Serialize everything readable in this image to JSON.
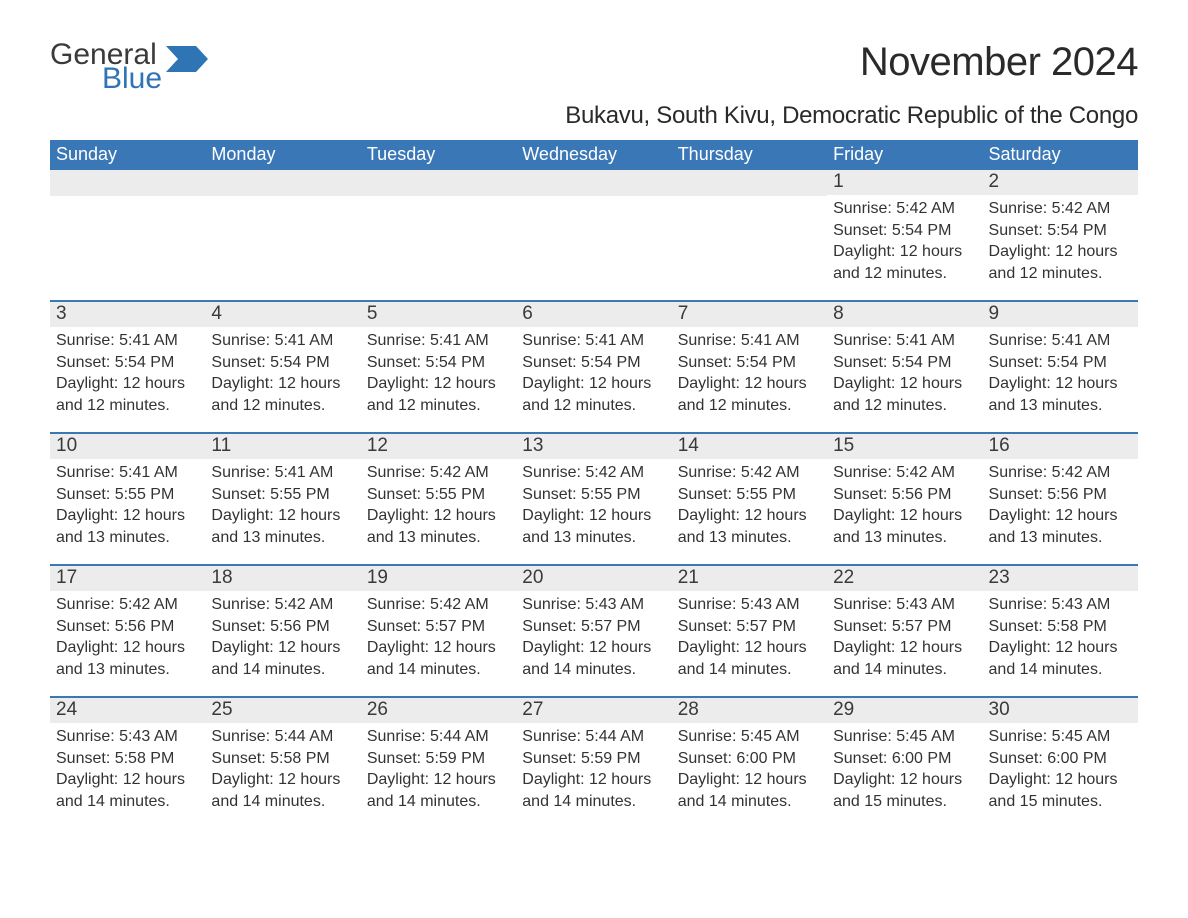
{
  "logo": {
    "word1": "General",
    "word2": "Blue"
  },
  "colors": {
    "header_bg": "#3a77b7",
    "header_text": "#ffffff",
    "day_num_bg": "#ececec",
    "rule": "#3a77b7",
    "logo_gray": "#3a3a3a",
    "logo_blue": "#2f74b5",
    "body_text": "#333333",
    "page_bg": "#ffffff"
  },
  "typography": {
    "title_fontsize": 40,
    "location_fontsize": 24,
    "dayheader_fontsize": 18,
    "daynum_fontsize": 19,
    "body_fontsize": 16
  },
  "title": "November 2024",
  "location": "Bukavu, South Kivu, Democratic Republic of the Congo",
  "day_names": [
    "Sunday",
    "Monday",
    "Tuesday",
    "Wednesday",
    "Thursday",
    "Friday",
    "Saturday"
  ],
  "weeks": [
    [
      null,
      null,
      null,
      null,
      null,
      {
        "n": "1",
        "sr": "5:42 AM",
        "ss": "5:54 PM",
        "dl": "12 hours and 12 minutes."
      },
      {
        "n": "2",
        "sr": "5:42 AM",
        "ss": "5:54 PM",
        "dl": "12 hours and 12 minutes."
      }
    ],
    [
      {
        "n": "3",
        "sr": "5:41 AM",
        "ss": "5:54 PM",
        "dl": "12 hours and 12 minutes."
      },
      {
        "n": "4",
        "sr": "5:41 AM",
        "ss": "5:54 PM",
        "dl": "12 hours and 12 minutes."
      },
      {
        "n": "5",
        "sr": "5:41 AM",
        "ss": "5:54 PM",
        "dl": "12 hours and 12 minutes."
      },
      {
        "n": "6",
        "sr": "5:41 AM",
        "ss": "5:54 PM",
        "dl": "12 hours and 12 minutes."
      },
      {
        "n": "7",
        "sr": "5:41 AM",
        "ss": "5:54 PM",
        "dl": "12 hours and 12 minutes."
      },
      {
        "n": "8",
        "sr": "5:41 AM",
        "ss": "5:54 PM",
        "dl": "12 hours and 12 minutes."
      },
      {
        "n": "9",
        "sr": "5:41 AM",
        "ss": "5:54 PM",
        "dl": "12 hours and 13 minutes."
      }
    ],
    [
      {
        "n": "10",
        "sr": "5:41 AM",
        "ss": "5:55 PM",
        "dl": "12 hours and 13 minutes."
      },
      {
        "n": "11",
        "sr": "5:41 AM",
        "ss": "5:55 PM",
        "dl": "12 hours and 13 minutes."
      },
      {
        "n": "12",
        "sr": "5:42 AM",
        "ss": "5:55 PM",
        "dl": "12 hours and 13 minutes."
      },
      {
        "n": "13",
        "sr": "5:42 AM",
        "ss": "5:55 PM",
        "dl": "12 hours and 13 minutes."
      },
      {
        "n": "14",
        "sr": "5:42 AM",
        "ss": "5:55 PM",
        "dl": "12 hours and 13 minutes."
      },
      {
        "n": "15",
        "sr": "5:42 AM",
        "ss": "5:56 PM",
        "dl": "12 hours and 13 minutes."
      },
      {
        "n": "16",
        "sr": "5:42 AM",
        "ss": "5:56 PM",
        "dl": "12 hours and 13 minutes."
      }
    ],
    [
      {
        "n": "17",
        "sr": "5:42 AM",
        "ss": "5:56 PM",
        "dl": "12 hours and 13 minutes."
      },
      {
        "n": "18",
        "sr": "5:42 AM",
        "ss": "5:56 PM",
        "dl": "12 hours and 14 minutes."
      },
      {
        "n": "19",
        "sr": "5:42 AM",
        "ss": "5:57 PM",
        "dl": "12 hours and 14 minutes."
      },
      {
        "n": "20",
        "sr": "5:43 AM",
        "ss": "5:57 PM",
        "dl": "12 hours and 14 minutes."
      },
      {
        "n": "21",
        "sr": "5:43 AM",
        "ss": "5:57 PM",
        "dl": "12 hours and 14 minutes."
      },
      {
        "n": "22",
        "sr": "5:43 AM",
        "ss": "5:57 PM",
        "dl": "12 hours and 14 minutes."
      },
      {
        "n": "23",
        "sr": "5:43 AM",
        "ss": "5:58 PM",
        "dl": "12 hours and 14 minutes."
      }
    ],
    [
      {
        "n": "24",
        "sr": "5:43 AM",
        "ss": "5:58 PM",
        "dl": "12 hours and 14 minutes."
      },
      {
        "n": "25",
        "sr": "5:44 AM",
        "ss": "5:58 PM",
        "dl": "12 hours and 14 minutes."
      },
      {
        "n": "26",
        "sr": "5:44 AM",
        "ss": "5:59 PM",
        "dl": "12 hours and 14 minutes."
      },
      {
        "n": "27",
        "sr": "5:44 AM",
        "ss": "5:59 PM",
        "dl": "12 hours and 14 minutes."
      },
      {
        "n": "28",
        "sr": "5:45 AM",
        "ss": "6:00 PM",
        "dl": "12 hours and 14 minutes."
      },
      {
        "n": "29",
        "sr": "5:45 AM",
        "ss": "6:00 PM",
        "dl": "12 hours and 15 minutes."
      },
      {
        "n": "30",
        "sr": "5:45 AM",
        "ss": "6:00 PM",
        "dl": "12 hours and 15 minutes."
      }
    ]
  ],
  "labels": {
    "sunrise": "Sunrise: ",
    "sunset": "Sunset: ",
    "daylight": "Daylight: "
  }
}
